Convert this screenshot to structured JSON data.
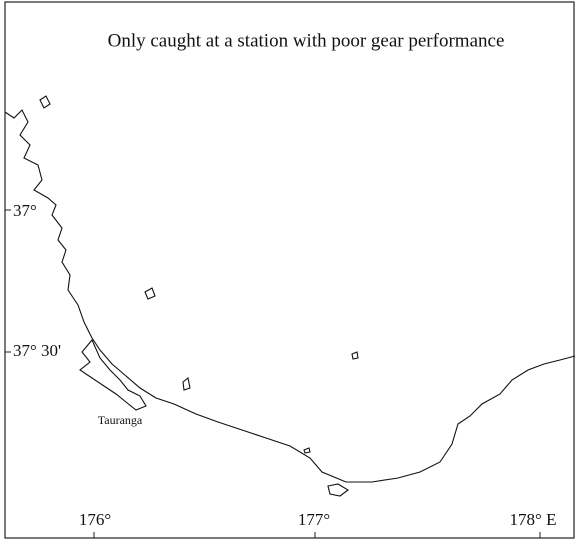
{
  "title": "Only caught at a station with poor gear performance",
  "latitude_labels": [
    "37°",
    "37° 30'"
  ],
  "longitude_labels": [
    "176°",
    "177°",
    "178° E"
  ],
  "places": [
    "Tauranga"
  ]
}
